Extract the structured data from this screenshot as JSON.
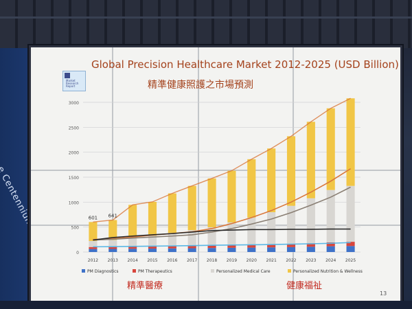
{
  "slide": {
    "logo_text": "Market Research Report",
    "title": "Global Precision Healthcare Market 2012-2025 (USD Billion)",
    "subtitle": "精準健康照護之市場預測",
    "footer_left": "精準醫療",
    "footer_right": "健康福祉",
    "page_number": "13",
    "side_banner_text": "e Centennium"
  },
  "colors": {
    "nutrition": "#f1c646",
    "medical_care": "#d8d6d2",
    "therapeutics": "#d8453c",
    "diagnostics": "#3f72c8",
    "total_line": "#d9773a",
    "care_line": "#8a7f74",
    "therapeutics_line": "#2a2a2a",
    "diagnostics_line": "#5bb8e6"
  },
  "chart_data": {
    "type": "bar",
    "stacked": true,
    "categories": [
      "2012",
      "2013",
      "2014",
      "2015",
      "2016",
      "2017",
      "2018",
      "2019",
      "2020",
      "2021",
      "2022",
      "2023",
      "2024",
      "2025"
    ],
    "ylim": [
      0,
      3000
    ],
    "yticks": [
      0,
      500,
      1000,
      1500,
      2000,
      2500,
      3000
    ],
    "grid": true,
    "legend_placement": "bottom",
    "series": [
      {
        "name": "PM Diagnostics",
        "color_key": "diagnostics",
        "values": [
          60,
          62,
          65,
          68,
          72,
          75,
          80,
          84,
          88,
          93,
          98,
          105,
          115,
          120
        ]
      },
      {
        "name": "PM Therapeutics",
        "color_key": "therapeutics",
        "values": [
          40,
          42,
          45,
          48,
          50,
          53,
          56,
          59,
          62,
          65,
          68,
          72,
          78,
          85
        ]
      },
      {
        "name": "Personalized Medical Care",
        "color_key": "medical_care",
        "values": [
          120,
          136,
          170,
          210,
          260,
          310,
          360,
          450,
          540,
          640,
          760,
          900,
          1050,
          1120
        ]
      },
      {
        "name": "Personalized Nutrition & Wellness",
        "color_key": "nutrition",
        "values": [
          381,
          401,
          665,
          679,
          793,
          887,
          979,
          1037,
          1170,
          1277,
          1394,
          1533,
          1637,
          1755
        ]
      }
    ],
    "totals": [
      601,
      641,
      945,
      1005,
      1175,
      1325,
      1475,
      1630,
      1860,
      2075,
      2320,
      2610,
      2880,
      3080
    ],
    "data_labels": [
      {
        "category": "2012",
        "text": "601"
      },
      {
        "category": "2013",
        "text": "641"
      }
    ],
    "lines": [
      {
        "name": "total_trend",
        "color_key": "total_line",
        "values": [
          250,
          268,
          300,
          340,
          370,
          405,
          470,
          570,
          690,
          830,
          1000,
          1200,
          1420,
          1670
        ]
      },
      {
        "name": "care_trend",
        "color_key": "care_line",
        "values": [
          240,
          255,
          280,
          300,
          320,
          345,
          400,
          470,
          560,
          660,
          790,
          940,
          1100,
          1300
        ]
      },
      {
        "name": "therapeutics_trend",
        "color_key": "therapeutics_line",
        "values": [
          240,
          290,
          320,
          345,
          370,
          400,
          430,
          440,
          450,
          450,
          455,
          455,
          460,
          460
        ]
      },
      {
        "name": "diagnostics_trend",
        "color_key": "diagnostics_line",
        "values": [
          105,
          108,
          112,
          118,
          122,
          128,
          135,
          140,
          145,
          150,
          158,
          165,
          175,
          190
        ]
      }
    ]
  }
}
